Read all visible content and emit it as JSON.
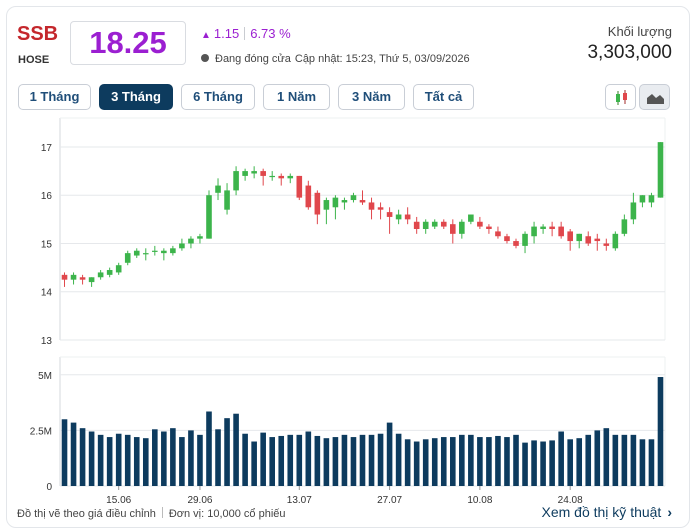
{
  "header": {
    "ticker": "SSB",
    "exchange": "HOSE",
    "price": "18.25",
    "change": "1.15",
    "change_pct": "6.73 %",
    "status": "Đang đóng cửa",
    "updated": "Cập nhật: 15:23, Thứ 5, 03/09/2026",
    "volume_label": "Khối lượng",
    "volume_value": "3,303,000"
  },
  "tabs": [
    {
      "label": "1 Tháng",
      "active": false
    },
    {
      "label": "3 Tháng",
      "active": true
    },
    {
      "label": "6 Tháng",
      "active": false
    },
    {
      "label": "1 Năm",
      "active": false
    },
    {
      "label": "3 Năm",
      "active": false
    },
    {
      "label": "Tất cả",
      "active": false
    }
  ],
  "chart_type_buttons": [
    {
      "icon": "candlestick-icon",
      "active": false
    },
    {
      "icon": "area-chart-icon",
      "active": true
    }
  ],
  "footer": {
    "note": "Đồ thị vẽ theo giá điều chỉnh",
    "unit": "Đơn vị: 10,000 cổ phiếu",
    "link": "Xem đồ thị kỹ thuật"
  },
  "colors": {
    "up": "#3cb44b",
    "down": "#e0474c",
    "volume": "#0d3b5e",
    "accent": "#9b1fd1"
  },
  "chart_data": [
    {
      "type": "candlestick",
      "y_ticks": [
        13,
        14,
        15,
        16,
        17
      ],
      "ylim": [
        13,
        17.6
      ],
      "x_tick_labels": [
        "15.06",
        "29.06",
        "13.07",
        "27.07",
        "10.08",
        "24.08"
      ],
      "x_tick_index": [
        6,
        15,
        26,
        36,
        46,
        56
      ],
      "ohlc": [
        [
          14.35,
          14.4,
          14.1,
          14.25
        ],
        [
          14.25,
          14.4,
          14.15,
          14.35
        ],
        [
          14.3,
          14.35,
          14.15,
          14.25
        ],
        [
          14.2,
          14.3,
          14.1,
          14.3
        ],
        [
          14.3,
          14.45,
          14.25,
          14.4
        ],
        [
          14.35,
          14.5,
          14.3,
          14.45
        ],
        [
          14.4,
          14.6,
          14.35,
          14.55
        ],
        [
          14.6,
          14.85,
          14.55,
          14.8
        ],
        [
          14.75,
          14.9,
          14.7,
          14.85
        ],
        [
          14.8,
          14.9,
          14.65,
          14.8
        ],
        [
          14.85,
          14.95,
          14.75,
          14.85
        ],
        [
          14.8,
          14.9,
          14.65,
          14.85
        ],
        [
          14.8,
          14.95,
          14.75,
          14.9
        ],
        [
          14.9,
          15.1,
          14.85,
          15.0
        ],
        [
          15.0,
          15.15,
          14.9,
          15.1
        ],
        [
          15.1,
          15.2,
          15.0,
          15.15
        ],
        [
          15.1,
          16.1,
          15.1,
          16.0
        ],
        [
          16.05,
          16.35,
          15.9,
          16.2
        ],
        [
          15.7,
          16.25,
          15.6,
          16.1
        ],
        [
          16.1,
          16.6,
          16.0,
          16.5
        ],
        [
          16.4,
          16.55,
          16.3,
          16.5
        ],
        [
          16.45,
          16.6,
          16.35,
          16.5
        ],
        [
          16.5,
          16.55,
          16.2,
          16.4
        ],
        [
          16.4,
          16.5,
          16.3,
          16.4
        ],
        [
          16.4,
          16.45,
          16.2,
          16.35
        ],
        [
          16.35,
          16.45,
          16.25,
          16.4
        ],
        [
          16.4,
          16.4,
          15.9,
          15.95
        ],
        [
          16.2,
          16.3,
          15.7,
          15.75
        ],
        [
          16.05,
          16.1,
          15.4,
          15.6
        ],
        [
          15.7,
          15.95,
          15.4,
          15.9
        ],
        [
          15.75,
          16.0,
          15.5,
          15.95
        ],
        [
          15.85,
          15.95,
          15.7,
          15.9
        ],
        [
          15.9,
          16.05,
          15.85,
          16.0
        ],
        [
          15.9,
          16.1,
          15.8,
          15.85
        ],
        [
          15.85,
          15.95,
          15.5,
          15.7
        ],
        [
          15.75,
          15.85,
          15.5,
          15.7
        ],
        [
          15.65,
          15.75,
          15.2,
          15.55
        ],
        [
          15.5,
          15.7,
          15.4,
          15.6
        ],
        [
          15.6,
          15.75,
          15.4,
          15.5
        ],
        [
          15.45,
          15.55,
          15.2,
          15.3
        ],
        [
          15.3,
          15.5,
          15.2,
          15.45
        ],
        [
          15.35,
          15.5,
          15.3,
          15.45
        ],
        [
          15.45,
          15.5,
          15.3,
          15.35
        ],
        [
          15.4,
          15.5,
          15.0,
          15.2
        ],
        [
          15.2,
          15.5,
          15.1,
          15.45
        ],
        [
          15.45,
          15.6,
          15.4,
          15.6
        ],
        [
          15.45,
          15.55,
          15.3,
          15.35
        ],
        [
          15.35,
          15.4,
          15.2,
          15.3
        ],
        [
          15.25,
          15.35,
          15.1,
          15.15
        ],
        [
          15.15,
          15.2,
          15.0,
          15.05
        ],
        [
          15.05,
          15.1,
          14.9,
          14.95
        ],
        [
          14.95,
          15.25,
          14.8,
          15.2
        ],
        [
          15.15,
          15.45,
          15.0,
          15.35
        ],
        [
          15.3,
          15.4,
          15.2,
          15.35
        ],
        [
          15.35,
          15.45,
          15.15,
          15.3
        ],
        [
          15.35,
          15.45,
          15.1,
          15.15
        ],
        [
          15.25,
          15.3,
          14.85,
          15.05
        ],
        [
          15.05,
          15.2,
          14.9,
          15.2
        ],
        [
          15.15,
          15.25,
          14.95,
          15.0
        ],
        [
          15.1,
          15.2,
          14.85,
          15.05
        ],
        [
          15.0,
          15.1,
          14.85,
          14.95
        ],
        [
          14.9,
          15.25,
          14.85,
          15.2
        ],
        [
          15.2,
          15.6,
          15.15,
          15.5
        ],
        [
          15.5,
          16.05,
          15.4,
          15.85
        ],
        [
          15.85,
          16.0,
          15.75,
          16.0
        ],
        [
          15.85,
          16.05,
          15.75,
          16.0
        ],
        [
          15.95,
          17.1,
          15.95,
          17.1
        ]
      ]
    },
    {
      "type": "bar",
      "name": "volume",
      "y_ticks": [
        0,
        2.5,
        5
      ],
      "y_tick_labels": [
        "0",
        "2.5M",
        "5M"
      ],
      "ylim": [
        0,
        5.8
      ],
      "values": [
        3.0,
        2.85,
        2.6,
        2.45,
        2.3,
        2.2,
        2.35,
        2.3,
        2.2,
        2.15,
        2.55,
        2.45,
        2.6,
        2.2,
        2.5,
        2.3,
        3.35,
        2.55,
        3.05,
        3.25,
        2.35,
        2.0,
        2.4,
        2.2,
        2.25,
        2.3,
        2.3,
        2.45,
        2.25,
        2.15,
        2.2,
        2.3,
        2.2,
        2.3,
        2.3,
        2.35,
        2.85,
        2.35,
        2.1,
        2.0,
        2.1,
        2.15,
        2.2,
        2.2,
        2.3,
        2.3,
        2.2,
        2.2,
        2.25,
        2.2,
        2.3,
        1.95,
        2.05,
        2.0,
        2.05,
        2.45,
        2.1,
        2.15,
        2.3,
        2.5,
        2.6,
        2.3,
        2.3,
        2.3,
        2.1,
        2.1,
        4.9
      ]
    }
  ]
}
